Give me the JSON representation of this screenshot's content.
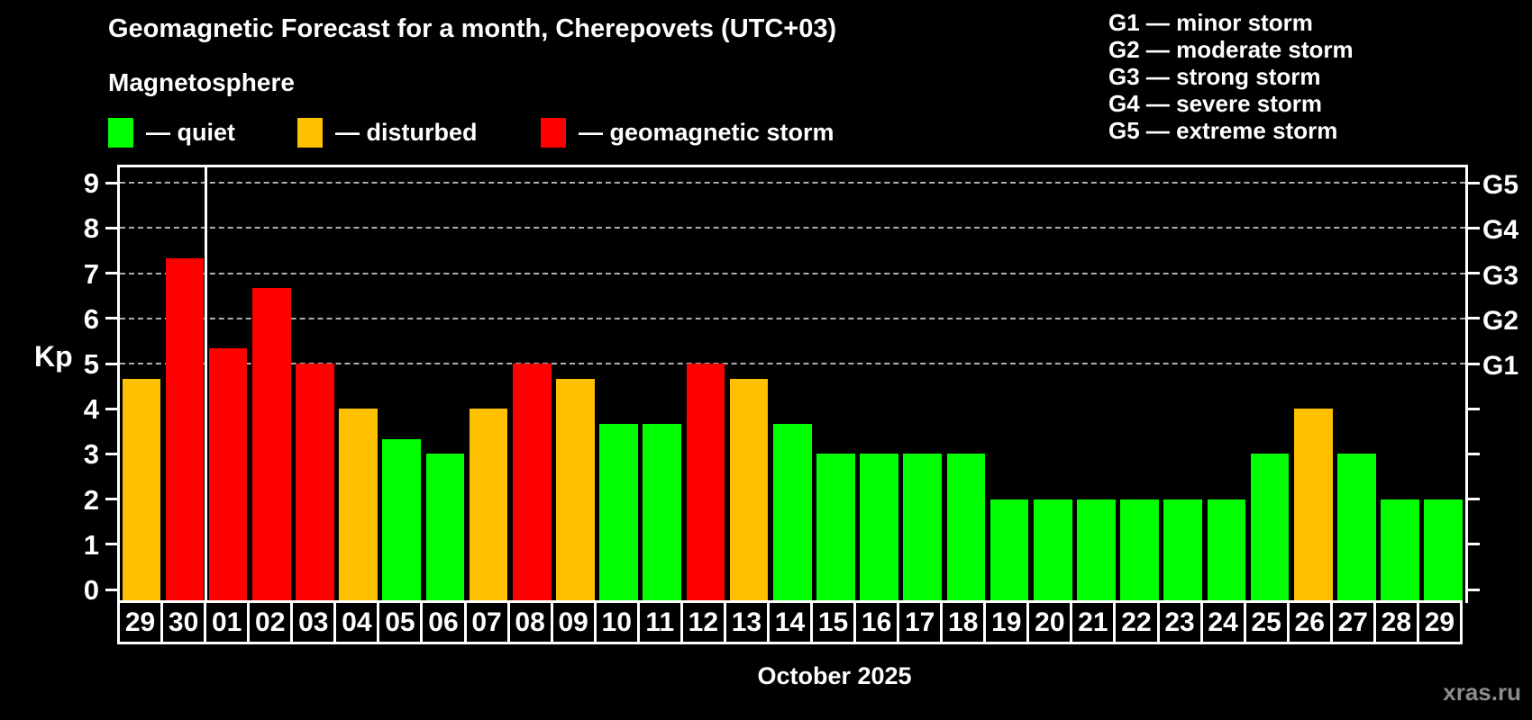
{
  "header": {
    "title": "Geomagnetic Forecast for a month, Cherepovets (UTC+03)",
    "subtitle": "Magnetosphere"
  },
  "legend": {
    "items": [
      {
        "id": "quiet",
        "label": "— quiet",
        "color": "#00ff00"
      },
      {
        "id": "disturbed",
        "label": "— disturbed",
        "color": "#ffc000"
      },
      {
        "id": "storm",
        "label": "— geomagnetic storm",
        "color": "#ff0000"
      }
    ]
  },
  "storm_scale_legend": {
    "items": [
      "G1 — minor storm",
      "G2 — moderate storm",
      "G3 — strong storm",
      "G4 — severe storm",
      "G5 — extreme storm"
    ]
  },
  "watermark": "xras.ru",
  "chart_data": {
    "type": "bar",
    "title": "Geomagnetic Forecast for a month, Cherepovets (UTC+03)",
    "ylabel": "Kp",
    "xlabel": "October 2025",
    "ylim": [
      0,
      9.5
    ],
    "yticks": [
      0,
      1,
      2,
      3,
      4,
      5,
      6,
      7,
      8,
      9
    ],
    "grid": "dashed lines only at Kp 5-9",
    "right_axis": [
      {
        "kp": 5,
        "label": "G1"
      },
      {
        "kp": 6,
        "label": "G2"
      },
      {
        "kp": 7,
        "label": "G3"
      },
      {
        "kp": 8,
        "label": "G4"
      },
      {
        "kp": 9,
        "label": "G5"
      }
    ],
    "month_separator_after_index": 1,
    "status_colors": {
      "quiet": "#00ff00",
      "disturbed": "#ffc000",
      "storm": "#ff0000"
    },
    "days": [
      {
        "day": "29",
        "kp": 4.67,
        "status": "disturbed"
      },
      {
        "day": "30",
        "kp": 7.33,
        "status": "storm"
      },
      {
        "day": "01",
        "kp": 5.33,
        "status": "storm"
      },
      {
        "day": "02",
        "kp": 6.67,
        "status": "storm"
      },
      {
        "day": "03",
        "kp": 5.0,
        "status": "storm"
      },
      {
        "day": "04",
        "kp": 4.0,
        "status": "disturbed"
      },
      {
        "day": "05",
        "kp": 3.33,
        "status": "quiet"
      },
      {
        "day": "06",
        "kp": 3.0,
        "status": "quiet"
      },
      {
        "day": "07",
        "kp": 4.0,
        "status": "disturbed"
      },
      {
        "day": "08",
        "kp": 5.0,
        "status": "storm"
      },
      {
        "day": "09",
        "kp": 4.67,
        "status": "disturbed"
      },
      {
        "day": "10",
        "kp": 3.67,
        "status": "quiet"
      },
      {
        "day": "11",
        "kp": 3.67,
        "status": "quiet"
      },
      {
        "day": "12",
        "kp": 5.0,
        "status": "storm"
      },
      {
        "day": "13",
        "kp": 4.67,
        "status": "disturbed"
      },
      {
        "day": "14",
        "kp": 3.67,
        "status": "quiet"
      },
      {
        "day": "15",
        "kp": 3.0,
        "status": "quiet"
      },
      {
        "day": "16",
        "kp": 3.0,
        "status": "quiet"
      },
      {
        "day": "17",
        "kp": 3.0,
        "status": "quiet"
      },
      {
        "day": "18",
        "kp": 3.0,
        "status": "quiet"
      },
      {
        "day": "19",
        "kp": 2.0,
        "status": "quiet"
      },
      {
        "day": "20",
        "kp": 2.0,
        "status": "quiet"
      },
      {
        "day": "21",
        "kp": 2.0,
        "status": "quiet"
      },
      {
        "day": "22",
        "kp": 2.0,
        "status": "quiet"
      },
      {
        "day": "23",
        "kp": 2.0,
        "status": "quiet"
      },
      {
        "day": "24",
        "kp": 2.0,
        "status": "quiet"
      },
      {
        "day": "25",
        "kp": 3.0,
        "status": "quiet"
      },
      {
        "day": "26",
        "kp": 4.0,
        "status": "disturbed"
      },
      {
        "day": "27",
        "kp": 3.0,
        "status": "quiet"
      },
      {
        "day": "28",
        "kp": 2.0,
        "status": "quiet"
      },
      {
        "day": "29",
        "kp": 2.0,
        "status": "quiet"
      }
    ]
  }
}
